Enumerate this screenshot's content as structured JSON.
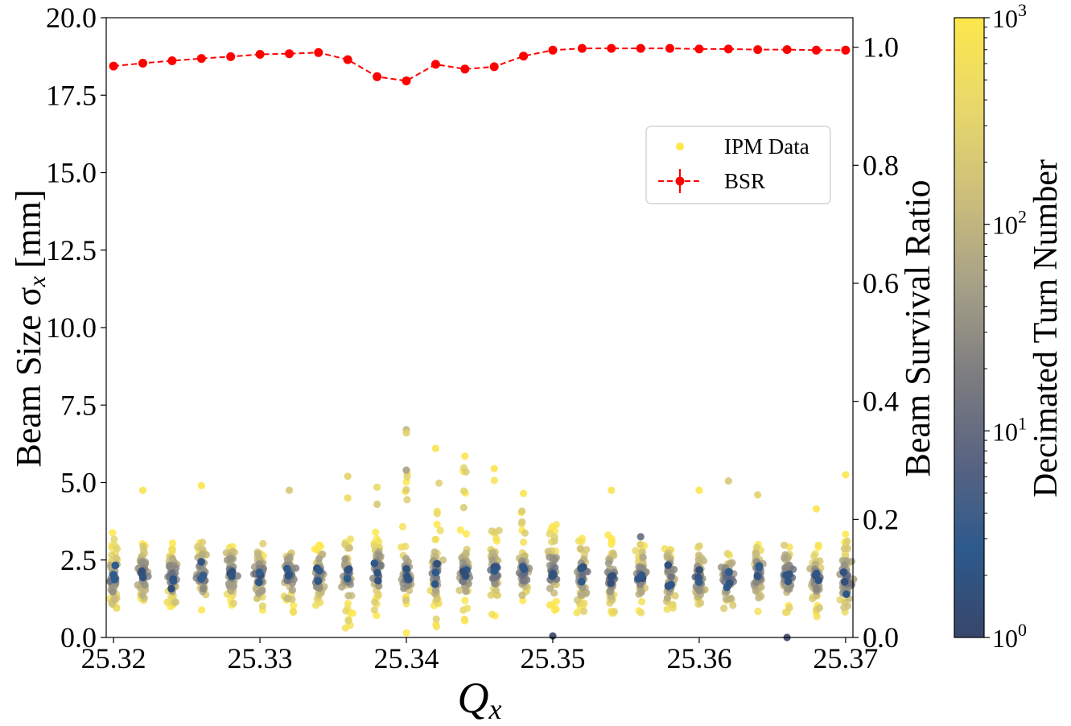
{
  "chart_data": {
    "type": "scatter",
    "xlabel": "Q",
    "xlabel_sub": "x",
    "ylabel": "Beam Size σ",
    "ylabel_sub": "x",
    "ylabel_unit": "[mm]",
    "y2label": "Beam Survival Ratio",
    "colorbar_label": "Decimated Turn Number",
    "xlim": [
      25.3195,
      25.3705
    ],
    "ylim": [
      0,
      20
    ],
    "y2lim": [
      0,
      1.05
    ],
    "colorbar_range": [
      1,
      1000
    ],
    "colorbar_scale": "log",
    "colormap": [
      "#38466b",
      "#2d5a8c",
      "#5a6482",
      "#7e7e80",
      "#a7a187",
      "#cdbf7b",
      "#e8d86a",
      "#fde74c"
    ],
    "x_ticks": [
      "25.32",
      "25.33",
      "25.34",
      "25.35",
      "25.36",
      "25.37"
    ],
    "x_tick_values": [
      25.32,
      25.33,
      25.34,
      25.35,
      25.36,
      25.37
    ],
    "y_ticks": [
      "0.0",
      "2.5",
      "5.0",
      "7.5",
      "10.0",
      "12.5",
      "15.0",
      "17.5",
      "20.0"
    ],
    "y2_ticks": [
      "0.0",
      "0.2",
      "0.4",
      "0.6",
      "0.8",
      "1.0"
    ],
    "colorbar_ticks": [
      {
        "base": "10",
        "exp": "0",
        "value": 1
      },
      {
        "base": "10",
        "exp": "1",
        "value": 10
      },
      {
        "base": "10",
        "exp": "2",
        "value": 100
      },
      {
        "base": "10",
        "exp": "3",
        "value": 1000
      }
    ],
    "legend": {
      "placement": "upper right",
      "entries": [
        {
          "label": "IPM Data",
          "color": "#fde74c",
          "marker": "circle"
        },
        {
          "label": "BSR",
          "color": "#ff0000",
          "marker": "circle-dashed-errorbar"
        }
      ]
    },
    "series": [
      {
        "name": "IPM Data",
        "axis": "left",
        "color_by": "Decimated Turn Number",
        "columns": [
          {
            "x": 25.32,
            "center": 1.9,
            "low": 0.95,
            "high": 3.45
          },
          {
            "x": 25.322,
            "center": 2.0,
            "low": 0.9,
            "high": 3.1
          },
          {
            "x": 25.324,
            "center": 2.0,
            "low": 0.9,
            "high": 3.05
          },
          {
            "x": 25.326,
            "center": 2.0,
            "low": 0.8,
            "high": 3.2
          },
          {
            "x": 25.328,
            "center": 2.05,
            "low": 0.95,
            "high": 3.0
          },
          {
            "x": 25.33,
            "center": 1.95,
            "low": 0.85,
            "high": 3.05
          },
          {
            "x": 25.332,
            "center": 2.0,
            "low": 0.75,
            "high": 3.0
          },
          {
            "x": 25.334,
            "center": 2.0,
            "low": 0.8,
            "high": 3.1
          },
          {
            "x": 25.336,
            "center": 2.1,
            "low": 0.3,
            "high": 3.4
          },
          {
            "x": 25.338,
            "center": 2.15,
            "low": 0.6,
            "high": 3.5
          },
          {
            "x": 25.34,
            "center": 2.0,
            "low": 0.0,
            "high": 5.4
          },
          {
            "x": 25.342,
            "center": 2.05,
            "low": 0.3,
            "high": 5.0
          },
          {
            "x": 25.344,
            "center": 2.0,
            "low": 0.5,
            "high": 5.6
          },
          {
            "x": 25.346,
            "center": 2.1,
            "low": 0.7,
            "high": 5.4
          },
          {
            "x": 25.348,
            "center": 2.05,
            "low": 0.7,
            "high": 4.3
          },
          {
            "x": 25.35,
            "center": 2.1,
            "low": 0.8,
            "high": 3.8
          },
          {
            "x": 25.352,
            "center": 2.0,
            "low": 0.8,
            "high": 3.2
          },
          {
            "x": 25.354,
            "center": 1.95,
            "low": 0.6,
            "high": 3.4
          },
          {
            "x": 25.356,
            "center": 2.0,
            "low": 0.8,
            "high": 3.0
          },
          {
            "x": 25.358,
            "center": 1.95,
            "low": 0.8,
            "high": 2.9
          },
          {
            "x": 25.36,
            "center": 1.9,
            "low": 0.8,
            "high": 3.0
          },
          {
            "x": 25.362,
            "center": 1.95,
            "low": 0.9,
            "high": 3.0
          },
          {
            "x": 25.364,
            "center": 2.0,
            "low": 0.8,
            "high": 3.0
          },
          {
            "x": 25.366,
            "center": 2.0,
            "low": 0.8,
            "high": 3.2
          },
          {
            "x": 25.368,
            "center": 1.9,
            "low": 0.6,
            "high": 3.0
          },
          {
            "x": 25.37,
            "center": 1.9,
            "low": 0.8,
            "high": 3.35
          }
        ],
        "outliers": [
          {
            "x": 25.322,
            "y": 4.75,
            "turn": 800
          },
          {
            "x": 25.326,
            "y": 4.9,
            "turn": 900
          },
          {
            "x": 25.332,
            "y": 4.75,
            "turn": 200
          },
          {
            "x": 25.336,
            "y": 5.2,
            "turn": 300
          },
          {
            "x": 25.336,
            "y": 4.5,
            "turn": 500
          },
          {
            "x": 25.338,
            "y": 4.85,
            "turn": 400
          },
          {
            "x": 25.338,
            "y": 4.3,
            "turn": 200
          },
          {
            "x": 25.34,
            "y": 6.7,
            "turn": 100
          },
          {
            "x": 25.34,
            "y": 6.6,
            "turn": 300
          },
          {
            "x": 25.34,
            "y": 5.4,
            "turn": 50
          },
          {
            "x": 25.342,
            "y": 6.1,
            "turn": 800
          },
          {
            "x": 25.344,
            "y": 5.85,
            "turn": 900
          },
          {
            "x": 25.346,
            "y": 5.45,
            "turn": 900
          },
          {
            "x": 25.348,
            "y": 4.65,
            "turn": 900
          },
          {
            "x": 25.35,
            "y": 0.05,
            "turn": 1
          },
          {
            "x": 25.354,
            "y": 4.75,
            "turn": 800
          },
          {
            "x": 25.356,
            "y": 3.25,
            "turn": 10
          },
          {
            "x": 25.36,
            "y": 4.75,
            "turn": 900
          },
          {
            "x": 25.362,
            "y": 5.05,
            "turn": 200
          },
          {
            "x": 25.364,
            "y": 4.6,
            "turn": 300
          },
          {
            "x": 25.366,
            "y": 0.0,
            "turn": 1
          },
          {
            "x": 25.368,
            "y": 4.15,
            "turn": 900
          },
          {
            "x": 25.37,
            "y": 5.25,
            "turn": 900
          }
        ]
      },
      {
        "name": "BSR",
        "axis": "right",
        "color": "#ff0000",
        "line_style": "dashed",
        "x": [
          25.32,
          25.322,
          25.324,
          25.326,
          25.328,
          25.33,
          25.332,
          25.334,
          25.336,
          25.338,
          25.34,
          25.342,
          25.344,
          25.346,
          25.348,
          25.35,
          25.352,
          25.354,
          25.356,
          25.358,
          25.36,
          25.362,
          25.364,
          25.366,
          25.368,
          25.37
        ],
        "y": [
          0.968,
          0.973,
          0.977,
          0.981,
          0.984,
          0.988,
          0.989,
          0.991,
          0.979,
          0.95,
          0.943,
          0.971,
          0.963,
          0.967,
          0.985,
          0.995,
          0.998,
          0.998,
          0.998,
          0.998,
          0.997,
          0.997,
          0.996,
          0.996,
          0.995,
          0.995
        ]
      }
    ]
  }
}
